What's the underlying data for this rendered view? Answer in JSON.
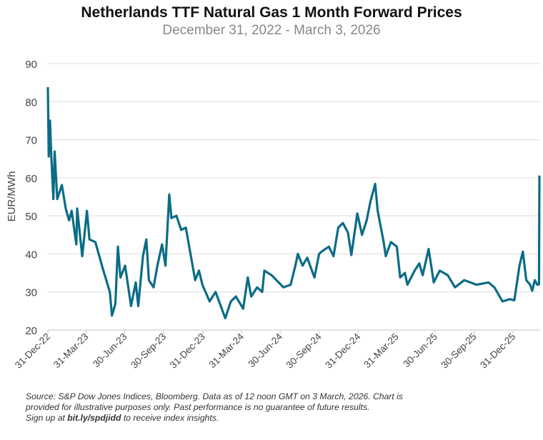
{
  "chart_data": {
    "type": "line",
    "title": "Netherlands TTF Natural Gas 1 Month Forward Prices",
    "subtitle": "December 31, 2022 - March 3, 2026",
    "ylabel": "EUR/MWh",
    "xlabel": "",
    "ylim": [
      20,
      90
    ],
    "yticks": [
      20,
      30,
      40,
      50,
      60,
      70,
      80,
      90
    ],
    "xlim": [
      "2022-12-31",
      "2026-03-03"
    ],
    "xticks": [
      {
        "date": "2022-12-31",
        "label": "31-Dec-22"
      },
      {
        "date": "2023-03-31",
        "label": "31-Mar-23"
      },
      {
        "date": "2023-06-30",
        "label": "30-Jun-23"
      },
      {
        "date": "2023-09-30",
        "label": "30-Sep-23"
      },
      {
        "date": "2023-12-31",
        "label": "31-Dec-23"
      },
      {
        "date": "2024-03-31",
        "label": "31-Mar-24"
      },
      {
        "date": "2024-06-30",
        "label": "30-Jun-24"
      },
      {
        "date": "2024-09-30",
        "label": "30-Sep-24"
      },
      {
        "date": "2024-12-31",
        "label": "31-Dec-24"
      },
      {
        "date": "2025-03-31",
        "label": "31-Mar-25"
      },
      {
        "date": "2025-06-30",
        "label": "30-Jun-25"
      },
      {
        "date": "2025-09-30",
        "label": "30-Sep-25"
      },
      {
        "date": "2025-12-31",
        "label": "31-Dec-25"
      }
    ],
    "grid": "horizontal",
    "color": "#0b6c86",
    "series": [
      {
        "x": [
          "2022-12-31",
          "2023-01-02",
          "2023-01-05",
          "2023-01-08",
          "2023-01-13",
          "2023-01-16",
          "2023-01-22",
          "2023-02-02",
          "2023-02-11",
          "2023-02-19",
          "2023-02-25",
          "2023-03-08",
          "2023-03-10",
          "2023-03-22",
          "2023-04-02",
          "2023-04-08",
          "2023-04-22",
          "2023-05-09",
          "2023-05-26",
          "2023-05-31",
          "2023-06-08",
          "2023-06-14",
          "2023-06-20",
          "2023-07-01",
          "2023-07-15",
          "2023-07-26",
          "2023-08-01",
          "2023-08-12",
          "2023-08-20",
          "2023-08-26",
          "2023-09-06",
          "2023-09-15",
          "2023-09-26",
          "2023-10-04",
          "2023-10-13",
          "2023-10-18",
          "2023-10-30",
          "2023-11-10",
          "2023-11-21",
          "2023-12-02",
          "2023-12-13",
          "2023-12-22",
          "2023-12-30",
          "2024-01-16",
          "2024-01-30",
          "2024-02-22",
          "2024-03-06",
          "2024-03-18",
          "2024-04-04",
          "2024-04-15",
          "2024-04-23",
          "2024-05-07",
          "2024-05-19",
          "2024-05-24",
          "2024-06-10",
          "2024-07-08",
          "2024-07-25",
          "2024-08-05",
          "2024-08-11",
          "2024-08-22",
          "2024-09-02",
          "2024-09-19",
          "2024-09-30",
          "2024-10-06",
          "2024-10-23",
          "2024-11-03",
          "2024-11-14",
          "2024-11-25",
          "2024-12-07",
          "2024-12-15",
          "2024-12-29",
          "2025-01-09",
          "2025-01-20",
          "2025-01-29",
          "2025-02-09",
          "2025-02-15",
          "2025-03-01",
          "2025-03-06",
          "2025-03-18",
          "2025-04-01",
          "2025-04-09",
          "2025-04-20",
          "2025-04-26",
          "2025-05-13",
          "2025-05-24",
          "2025-06-01",
          "2025-06-15",
          "2025-06-27",
          "2025-07-11",
          "2025-07-30",
          "2025-08-16",
          "2025-09-07",
          "2025-10-06",
          "2025-11-03",
          "2025-11-17",
          "2025-12-06",
          "2025-12-23",
          "2026-01-03",
          "2026-01-15",
          "2026-01-23",
          "2026-01-31",
          "2026-02-09",
          "2026-02-14",
          "2026-02-20",
          "2026-02-26",
          "2026-03-02",
          "2026-03-03"
        ],
        "y": [
          83.8,
          65.6,
          75,
          65.6,
          54.4,
          66.9,
          54.4,
          58.1,
          51.9,
          48.8,
          51.3,
          42.5,
          51.9,
          39.4,
          51.3,
          43.8,
          43.1,
          36.3,
          30,
          23.8,
          26.9,
          41.9,
          33.8,
          36.9,
          26.3,
          32.5,
          26.3,
          39.4,
          43.8,
          33.1,
          31.2,
          36.9,
          42.5,
          36.9,
          55.6,
          49.4,
          50,
          46.3,
          46.9,
          40,
          33.1,
          35.6,
          31.9,
          27.5,
          30,
          23.1,
          27.5,
          28.8,
          25.6,
          33.8,
          28.8,
          31.2,
          30,
          35.6,
          34.4,
          31.2,
          31.9,
          36.9,
          40,
          36.9,
          39,
          33.8,
          40,
          40.6,
          41.9,
          39.4,
          46.9,
          48.1,
          45.6,
          39.7,
          50.6,
          45,
          48.8,
          53.8,
          58.4,
          51.3,
          43.1,
          39.4,
          43.1,
          41.9,
          33.8,
          35,
          31.9,
          35.6,
          37.5,
          34.4,
          41.3,
          32.5,
          35.6,
          34.4,
          31.2,
          33.1,
          31.9,
          32.5,
          31.2,
          27.5,
          28.1,
          27.8,
          36.9,
          40.6,
          33.1,
          31.9,
          30.3,
          33.1,
          31.9,
          32,
          60.6
        ]
      }
    ]
  },
  "footnote": {
    "line1": "Source: S&P Dow Jones Indices, Bloomberg.  Data as of 12 noon GMT on 3 March, 2026.  Chart is",
    "line2": "provided for illustrative purposes only.  Past performance is no guarantee of future results.",
    "line3_pre": "Sign up at ",
    "line3_link": "bit.ly/spdjidd",
    "line3_post": " to receive index insights."
  }
}
